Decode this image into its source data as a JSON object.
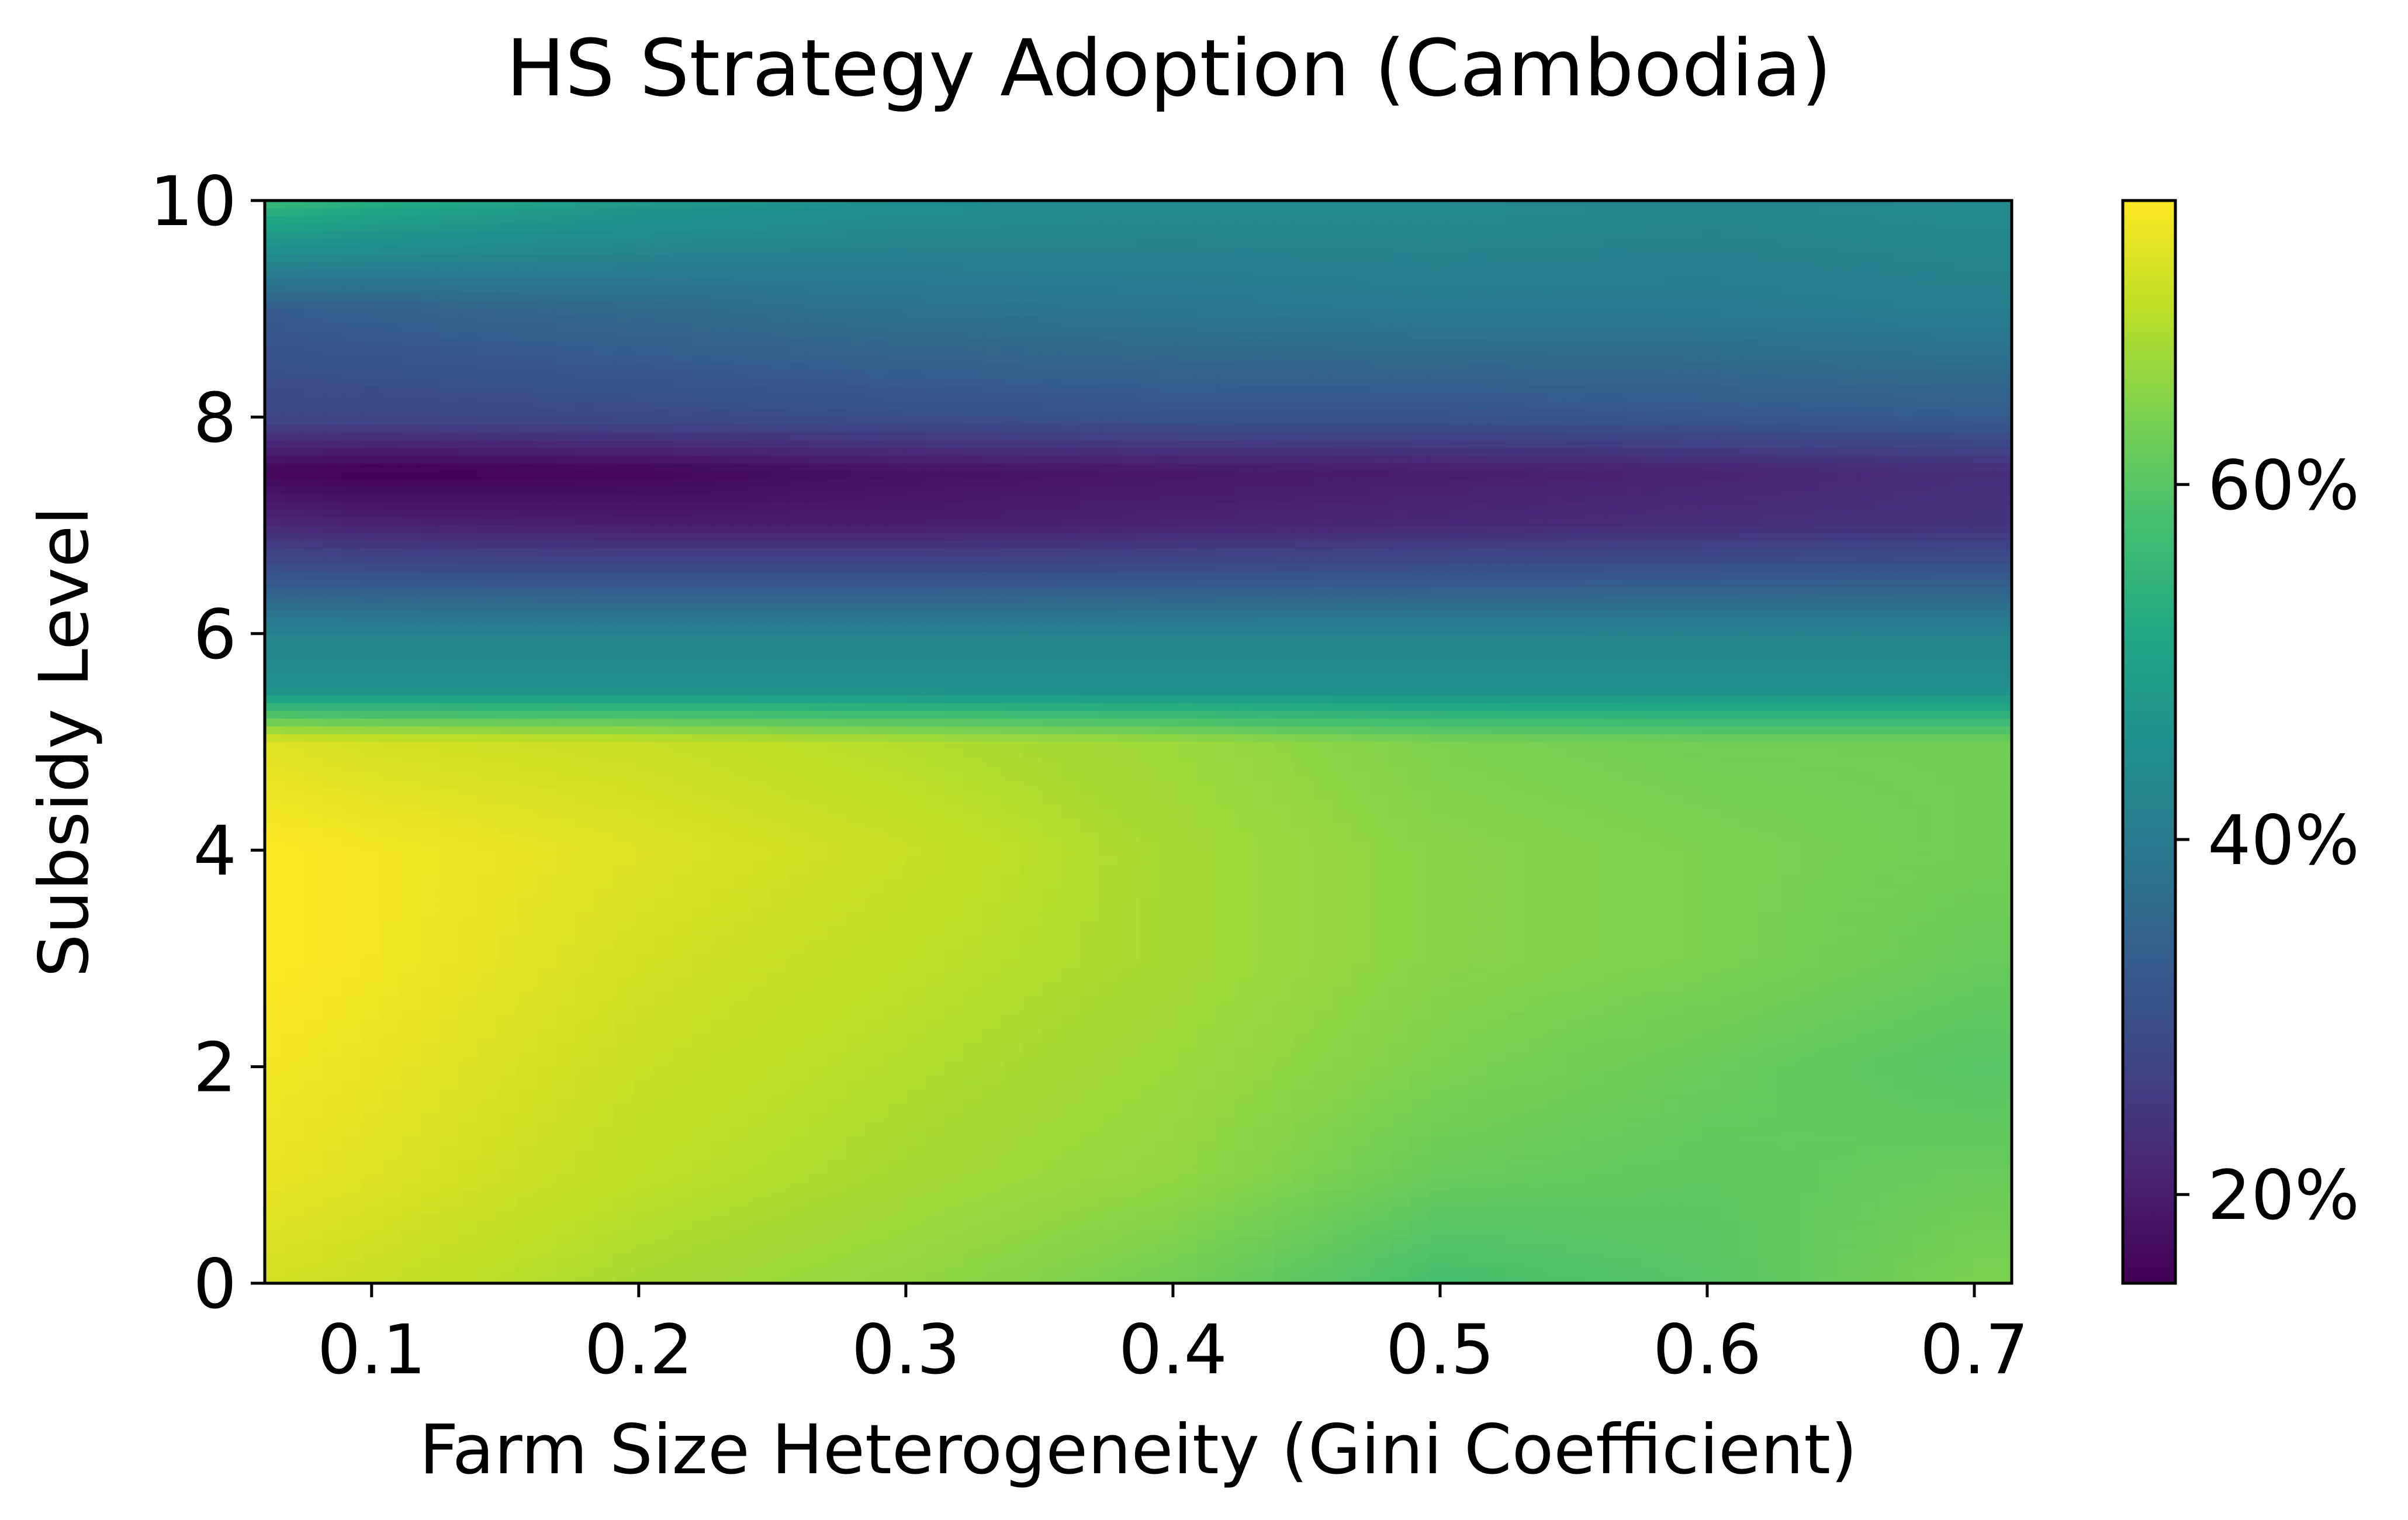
{
  "chart_data": {
    "type": "heatmap",
    "title": "HS Strategy Adoption (Cambodia)",
    "xlabel": "Farm Size Heterogeneity (Gini Coefficient)",
    "ylabel": "Subsidy Level",
    "xlim": [
      0.06,
      0.714
    ],
    "ylim": [
      0,
      10
    ],
    "x_ticks": [
      {
        "value": 0.1,
        "label": "0.1"
      },
      {
        "value": 0.2,
        "label": "0.2"
      },
      {
        "value": 0.3,
        "label": "0.3"
      },
      {
        "value": 0.4,
        "label": "0.4"
      },
      {
        "value": 0.5,
        "label": "0.5"
      },
      {
        "value": 0.6,
        "label": "0.6"
      },
      {
        "value": 0.7,
        "label": "0.7"
      }
    ],
    "y_ticks": [
      {
        "value": 0,
        "label": "0"
      },
      {
        "value": 2,
        "label": "2"
      },
      {
        "value": 4,
        "label": "4"
      },
      {
        "value": 6,
        "label": "6"
      },
      {
        "value": 8,
        "label": "8"
      },
      {
        "value": 10,
        "label": "10"
      }
    ],
    "colorbar": {
      "colormap": "viridis",
      "range": [
        15,
        76
      ],
      "ticks": [
        {
          "value": 20,
          "label": "20%"
        },
        {
          "value": 40,
          "label": "40%"
        },
        {
          "value": 60,
          "label": "60%"
        }
      ]
    },
    "grid": false,
    "x": [
      0.06,
      0.1,
      0.2,
      0.3,
      0.4,
      0.5,
      0.6,
      0.7,
      0.714
    ],
    "y": [
      0,
      1,
      2,
      3,
      4,
      5,
      5.5,
      6,
      7,
      7.5,
      8,
      9,
      10
    ],
    "z": [
      [
        72,
        71,
        68,
        66,
        63,
        58,
        60,
        64,
        64
      ],
      [
        74,
        73,
        70,
        68,
        66,
        62,
        61,
        62,
        62
      ],
      [
        75,
        74,
        71,
        69,
        67,
        64,
        62,
        60,
        60
      ],
      [
        76,
        75,
        72,
        70,
        68,
        65,
        64,
        62,
        62
      ],
      [
        76,
        75,
        73,
        71,
        68,
        65,
        64,
        63,
        63
      ],
      [
        73,
        72,
        71,
        69,
        67,
        64,
        63,
        63,
        63
      ],
      [
        45,
        45,
        45,
        45,
        45,
        45,
        45,
        45,
        45
      ],
      [
        42,
        42,
        42,
        42,
        42,
        42,
        42,
        42,
        42
      ],
      [
        22,
        21,
        20,
        20,
        21,
        22,
        23,
        24,
        24
      ],
      [
        16,
        15,
        16,
        18,
        19,
        20,
        21,
        23,
        23
      ],
      [
        28,
        28,
        29,
        30,
        31,
        31,
        32,
        33,
        33
      ],
      [
        33,
        34,
        36,
        38,
        39,
        40,
        40,
        41,
        41
      ],
      [
        56,
        53,
        48,
        45,
        44,
        44,
        43,
        44,
        44
      ]
    ]
  }
}
